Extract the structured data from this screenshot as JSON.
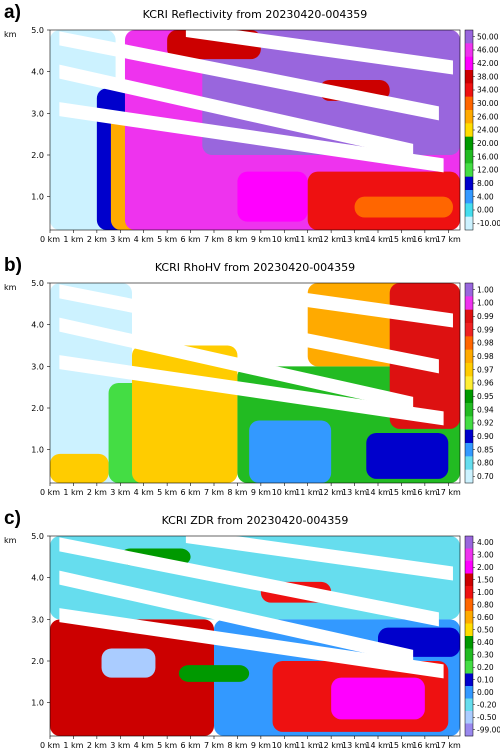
{
  "chart_data": [
    {
      "type": "heatmap",
      "panel_label": "a)",
      "title": "KCRI Reflectivity from 20230420-004359",
      "xlabel": "",
      "ylabel": "km",
      "xlim": [
        0,
        17.5
      ],
      "ylim": [
        0.2,
        5.0
      ],
      "x_ticks": [
        "0 km",
        "1 km",
        "2 km",
        "3 km",
        "4 km",
        "5 km",
        "6 km",
        "7 km",
        "8 km",
        "9 km",
        "10 km",
        "11 km",
        "12 km",
        "13 km",
        "14 km",
        "15 km",
        "16 km",
        "17 km"
      ],
      "y_ticks": [
        "1.0",
        "2.0",
        "3.0",
        "4.0",
        "5.0"
      ],
      "colorbar": {
        "labels": [
          "50.00",
          "46.00",
          "42.00",
          "38.00",
          "34.00",
          "30.00",
          "26.00",
          "24.00",
          "20.00",
          "16.00",
          "12.00",
          "8.00",
          "4.00",
          "0.00",
          "-10.00"
        ],
        "colors": [
          "#9966dd",
          "#ee33ee",
          "#ff00ff",
          "#cc0000",
          "#ee1111",
          "#ff6600",
          "#ffaa00",
          "#ffdd00",
          "#009900",
          "#22bb22",
          "#44dd44",
          "#0000cc",
          "#3399ff",
          "#44ddee",
          "#ccf2ff"
        ]
      },
      "beam_gaps": [
        [
          0.4,
          4.8,
          16.6,
          3.0
        ],
        [
          0.4,
          4.0,
          15.5,
          2.1
        ],
        [
          0.4,
          3.1,
          16.8,
          1.75
        ],
        [
          5.8,
          5.0,
          17.2,
          4.1
        ]
      ],
      "zones": [
        {
          "x": [
            0,
            2.8
          ],
          "ytop": 5.0,
          "ybot": 0.2,
          "level": 14
        },
        {
          "x": [
            2.0,
            5.5
          ],
          "ytop": 3.6,
          "ybot": 0.2,
          "level": 11
        },
        {
          "x": [
            2.6,
            6.0
          ],
          "ytop": 3.0,
          "ybot": 0.2,
          "level": 6
        },
        {
          "x": [
            3.2,
            17.5
          ],
          "ytop": 5.0,
          "ybot": 0.2,
          "level": 1
        },
        {
          "x": [
            6.5,
            17.5
          ],
          "ytop": 5.0,
          "ybot": 2.0,
          "level": 0
        },
        {
          "x": [
            8,
            11
          ],
          "ytop": 1.6,
          "ybot": 0.4,
          "level": 2
        },
        {
          "x": [
            11,
            17.5
          ],
          "ytop": 1.6,
          "ybot": 0.2,
          "level": 4
        },
        {
          "x": [
            13,
            17.2
          ],
          "ytop": 1.0,
          "ybot": 0.5,
          "level": 5
        },
        {
          "x": [
            5,
            9
          ],
          "ytop": 5.0,
          "ybot": 4.3,
          "level": 3
        },
        {
          "x": [
            11.5,
            14.5
          ],
          "ytop": 3.8,
          "ybot": 3.3,
          "level": 3
        }
      ]
    },
    {
      "type": "heatmap",
      "panel_label": "b)",
      "title": "KCRI RhoHV from 20230420-004359",
      "xlabel": "",
      "ylabel": "km",
      "xlim": [
        0,
        17.5
      ],
      "ylim": [
        0.2,
        5.0
      ],
      "x_ticks": [
        "0 km",
        "1 km",
        "2 km",
        "3 km",
        "4 km",
        "5 km",
        "6 km",
        "7 km",
        "8 km",
        "9 km",
        "10 km",
        "11 km",
        "12 km",
        "13 km",
        "14 km",
        "15 km",
        "16 km",
        "17 km"
      ],
      "y_ticks": [
        "1.0",
        "2.0",
        "3.0",
        "4.0",
        "5.0"
      ],
      "colorbar": {
        "labels": [
          "1.00",
          "1.00",
          "0.99",
          "0.99",
          "0.98",
          "0.98",
          "0.97",
          "0.96",
          "0.95",
          "0.94",
          "0.92",
          "0.90",
          "0.85",
          "0.80",
          "0.70"
        ],
        "colors": [
          "#9966dd",
          "#ee33ee",
          "#dd1111",
          "#ee2222",
          "#ff6600",
          "#ffaa00",
          "#ffcc00",
          "#ffee33",
          "#009900",
          "#22bb22",
          "#44dd44",
          "#0000cc",
          "#3399ff",
          "#66ddee",
          "#ccf2ff"
        ]
      },
      "beam_gaps": [
        [
          0.4,
          4.8,
          16.6,
          3.0
        ],
        [
          0.4,
          4.0,
          15.5,
          2.1
        ],
        [
          0.4,
          3.1,
          16.8,
          1.75
        ],
        [
          5.8,
          5.0,
          17.2,
          4.1
        ]
      ],
      "zones": [
        {
          "x": [
            0,
            3.5
          ],
          "ytop": 5.0,
          "ybot": 0.2,
          "level": 14
        },
        {
          "x": [
            0,
            2.5
          ],
          "ytop": 0.9,
          "ybot": 0.2,
          "level": 6
        },
        {
          "x": [
            2.5,
            5
          ],
          "ytop": 2.6,
          "ybot": 0.2,
          "level": 10
        },
        {
          "x": [
            3.5,
            8
          ],
          "ytop": 3.5,
          "ybot": 0.2,
          "level": 6
        },
        {
          "x": [
            8,
            17.5
          ],
          "ytop": 3.0,
          "ybot": 0.2,
          "level": 9
        },
        {
          "x": [
            8.5,
            12
          ],
          "ytop": 1.7,
          "ybot": 0.2,
          "level": 12
        },
        {
          "x": [
            13.5,
            17
          ],
          "ytop": 1.4,
          "ybot": 0.3,
          "level": 11
        },
        {
          "x": [
            11,
            17.5
          ],
          "ytop": 5.0,
          "ybot": 3.0,
          "level": 5
        },
        {
          "x": [
            14.5,
            17.5
          ],
          "ytop": 5.0,
          "ybot": 1.5,
          "level": 2
        }
      ]
    },
    {
      "type": "heatmap",
      "panel_label": "c)",
      "title": "KCRI ZDR from 20230420-004359",
      "xlabel": "",
      "ylabel": "km",
      "xlim": [
        0,
        17.5
      ],
      "ylim": [
        0.2,
        5.0
      ],
      "x_ticks": [
        "0 km",
        "1 km",
        "2 km",
        "3 km",
        "4 km",
        "5 km",
        "6 km",
        "7 km",
        "8 km",
        "9 km",
        "10 km",
        "11 km",
        "12 km",
        "13 km",
        "14 km",
        "15 km",
        "16 km",
        "17 km"
      ],
      "y_ticks": [
        "1.0",
        "2.0",
        "3.0",
        "4.0",
        "5.0"
      ],
      "colorbar": {
        "labels": [
          "4.00",
          "3.00",
          "2.00",
          "1.50",
          "1.00",
          "0.80",
          "0.60",
          "0.50",
          "0.40",
          "0.30",
          "0.20",
          "0.10",
          "0.00",
          "-0.20",
          "-0.50",
          "-99.00"
        ],
        "colors": [
          "#9966dd",
          "#ee33ee",
          "#ff00ff",
          "#cc0000",
          "#ee1111",
          "#ff6600",
          "#ffaa00",
          "#ffdd00",
          "#009900",
          "#22bb22",
          "#44dd44",
          "#0000cc",
          "#3399ff",
          "#66ddee",
          "#aaccff",
          "#9988ee"
        ]
      },
      "beam_gaps": [
        [
          0.4,
          4.8,
          16.6,
          3.0
        ],
        [
          0.4,
          4.0,
          15.5,
          2.1
        ],
        [
          0.4,
          3.1,
          16.8,
          1.75
        ],
        [
          5.8,
          5.0,
          17.2,
          4.1
        ]
      ],
      "zones": [
        {
          "x": [
            0,
            17.5
          ],
          "ytop": 5.0,
          "ybot": 3.0,
          "level": 13
        },
        {
          "x": [
            0,
            7
          ],
          "ytop": 3.0,
          "ybot": 0.2,
          "level": 3
        },
        {
          "x": [
            7,
            17.5
          ],
          "ytop": 3.0,
          "ybot": 0.2,
          "level": 12
        },
        {
          "x": [
            9.5,
            17
          ],
          "ytop": 2.0,
          "ybot": 0.3,
          "level": 4
        },
        {
          "x": [
            12,
            16
          ],
          "ytop": 1.6,
          "ybot": 0.6,
          "level": 2
        },
        {
          "x": [
            2.2,
            4.5
          ],
          "ytop": 2.3,
          "ybot": 1.6,
          "level": 14
        },
        {
          "x": [
            14,
            17.5
          ],
          "ytop": 2.8,
          "ybot": 2.1,
          "level": 11
        },
        {
          "x": [
            5.5,
            8.5
          ],
          "ytop": 1.9,
          "ybot": 1.5,
          "level": 8
        },
        {
          "x": [
            3,
            6
          ],
          "ytop": 4.7,
          "ybot": 4.3,
          "level": 8
        },
        {
          "x": [
            9,
            12
          ],
          "ytop": 3.9,
          "ybot": 3.4,
          "level": 4
        }
      ]
    }
  ]
}
